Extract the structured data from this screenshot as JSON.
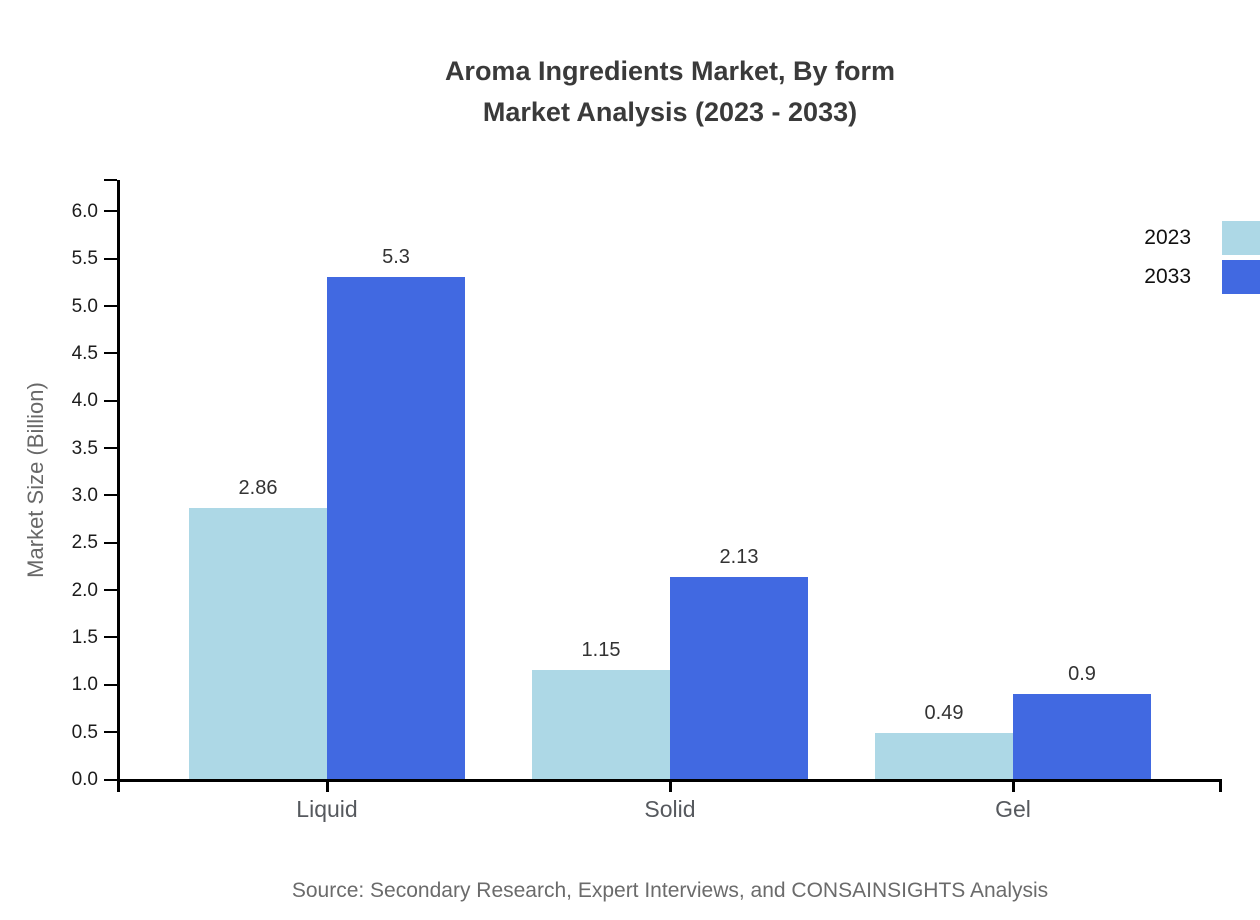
{
  "title": {
    "line1": "Aroma Ingredients Market, By form",
    "line2": "Market Analysis (2023 - 2033)"
  },
  "legend": {
    "items": [
      {
        "label": "2023",
        "color": "#ADD8E6"
      },
      {
        "label": "2033",
        "color": "#4169E1"
      }
    ]
  },
  "source_note": "Source: Secondary Research, Expert Interviews, and CONSAINSIGHTS Analysis",
  "chart_data": {
    "type": "bar",
    "title": "Aroma Ingredients Market, By form — Market Analysis (2023 - 2033)",
    "categories": [
      "Liquid",
      "Solid",
      "Gel"
    ],
    "series": [
      {
        "name": "2023",
        "color": "#ADD8E6",
        "values": [
          2.86,
          1.15,
          0.49
        ]
      },
      {
        "name": "2033",
        "color": "#4169E1",
        "values": [
          5.3,
          2.13,
          0.9
        ]
      }
    ],
    "xlabel": "",
    "ylabel": "Market Size (Billion)",
    "ylim": [
      0,
      6.35
    ],
    "yticks": [
      0,
      0.5,
      1,
      1.5,
      2,
      2.5,
      3,
      3.5,
      4,
      4.5,
      5,
      5.5,
      6
    ],
    "ytick_labels": [
      "0.0",
      "0.5",
      "1.0",
      "1.5",
      "2.0",
      "2.5",
      "3.0",
      "3.5",
      "4.0",
      "4.5",
      "5.0",
      "5.5",
      "6.0"
    ],
    "bar_value_labels": true,
    "grid": false,
    "legend_position": "top-right"
  }
}
